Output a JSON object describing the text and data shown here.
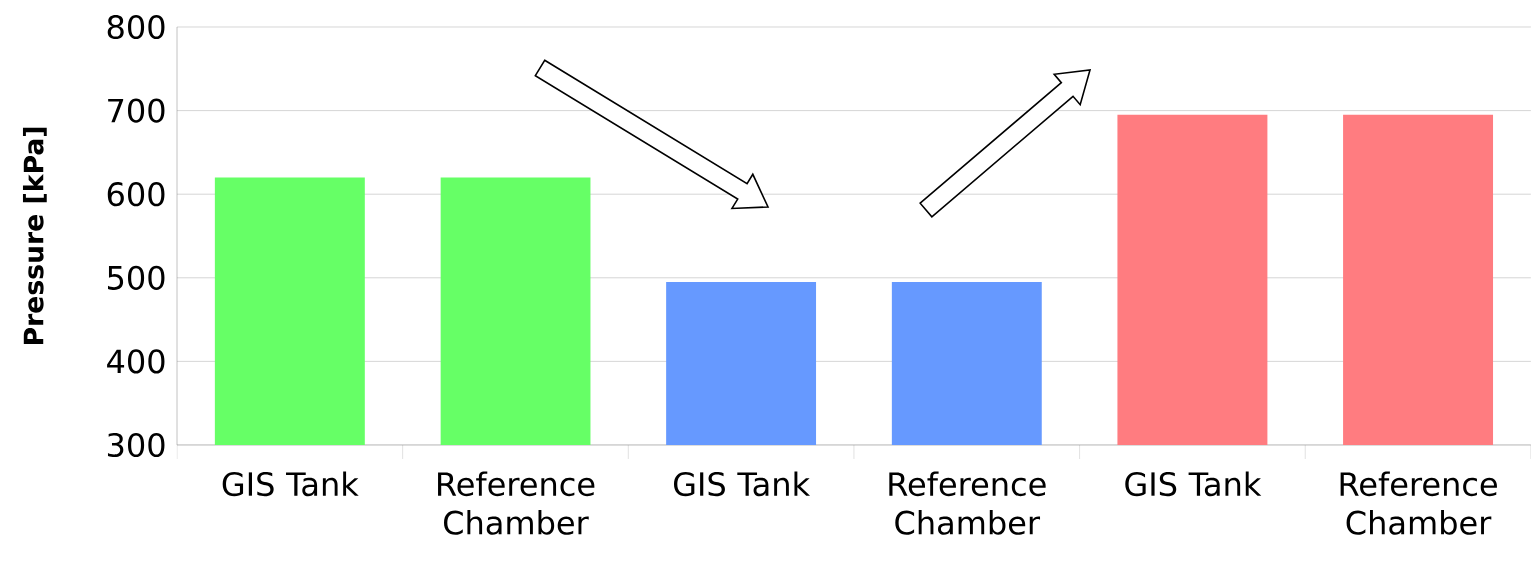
{
  "chart_data": {
    "type": "bar",
    "ylabel": "Pressure [kPa]",
    "categories": [
      "GIS Tank",
      "Reference Chamber",
      "GIS Tank",
      "Reference Chamber",
      "GIS Tank",
      "Reference Chamber"
    ],
    "values": [
      620,
      620,
      495,
      495,
      695,
      695
    ],
    "colors": [
      "#66ff66",
      "#66ff66",
      "#6699ff",
      "#6699ff",
      "#ff7c80",
      "#ff7c80"
    ],
    "ylim": [
      300,
      800
    ],
    "yticks": [
      300,
      400,
      500,
      600,
      700,
      800
    ],
    "grid": "y"
  }
}
